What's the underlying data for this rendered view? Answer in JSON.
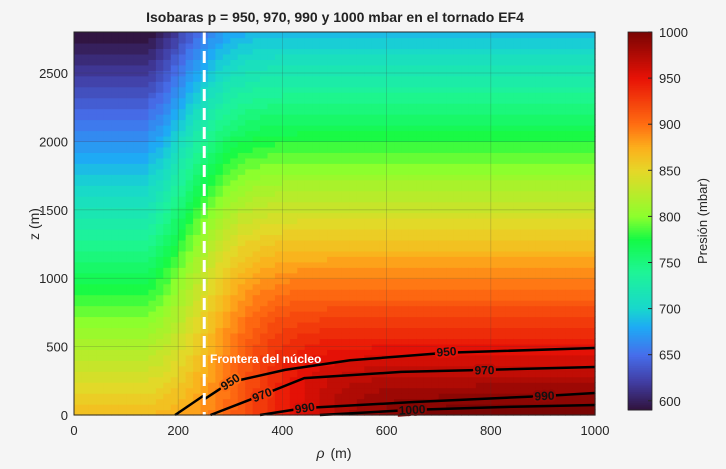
{
  "chart_data": {
    "type": "heatmap",
    "subtype": "filled-contour",
    "title": "Isobaras p = 950, 970, 990 y 1000 mbar en el tornado EF4",
    "xlabel_symbol": "ρ",
    "xlabel_unit": "(m)",
    "ylabel": "z (m)",
    "xlim": [
      0,
      1000
    ],
    "ylim": [
      0,
      2800
    ],
    "xticks": [
      "0",
      "200",
      "400",
      "600",
      "800",
      "1000"
    ],
    "yticks": [
      "0",
      "500",
      "1000",
      "1500",
      "2000",
      "2500"
    ],
    "grid": true,
    "colorbar": {
      "label": "Presión (mbar)",
      "range": [
        590,
        1000
      ],
      "ticks": [
        "600",
        "650",
        "700",
        "750",
        "800",
        "850",
        "900",
        "950",
        "1000"
      ],
      "colormap": "turbo"
    },
    "core_boundary": {
      "rho": 250,
      "label": "Frontera del núcleo",
      "color": "#ffffff"
    },
    "contours": [
      {
        "level": "950",
        "points": [
          [
            194,
            0
          ],
          [
            248,
            140
          ],
          [
            252,
            120
          ],
          [
            300,
            240
          ],
          [
            405,
            330
          ],
          [
            530,
            400
          ],
          [
            715,
            455
          ],
          [
            1000,
            490
          ]
        ],
        "labels": [
          [
            300,
            241
          ],
          [
            715,
            461
          ]
        ]
      },
      {
        "level": "970",
        "points": [
          [
            262,
            0
          ],
          [
            361,
            146
          ],
          [
            442,
            270
          ],
          [
            628,
            315
          ],
          [
            788,
            330
          ],
          [
            1000,
            351
          ]
        ],
        "labels": [
          [
            361,
            146
          ],
          [
            788,
            327
          ]
        ]
      },
      {
        "level": "990",
        "points": [
          [
            357,
            0
          ],
          [
            443,
            51
          ],
          [
            653,
            95
          ],
          [
            903,
            139
          ],
          [
            1000,
            161
          ]
        ],
        "labels": [
          [
            443,
            51
          ],
          [
            903,
            139
          ]
        ]
      },
      {
        "level": "1000",
        "points": [
          [
            472,
            0
          ],
          [
            649,
            37
          ],
          [
            818,
            58
          ],
          [
            1000,
            73
          ]
        ],
        "labels": [
          [
            649,
            37
          ]
        ]
      }
    ]
  }
}
